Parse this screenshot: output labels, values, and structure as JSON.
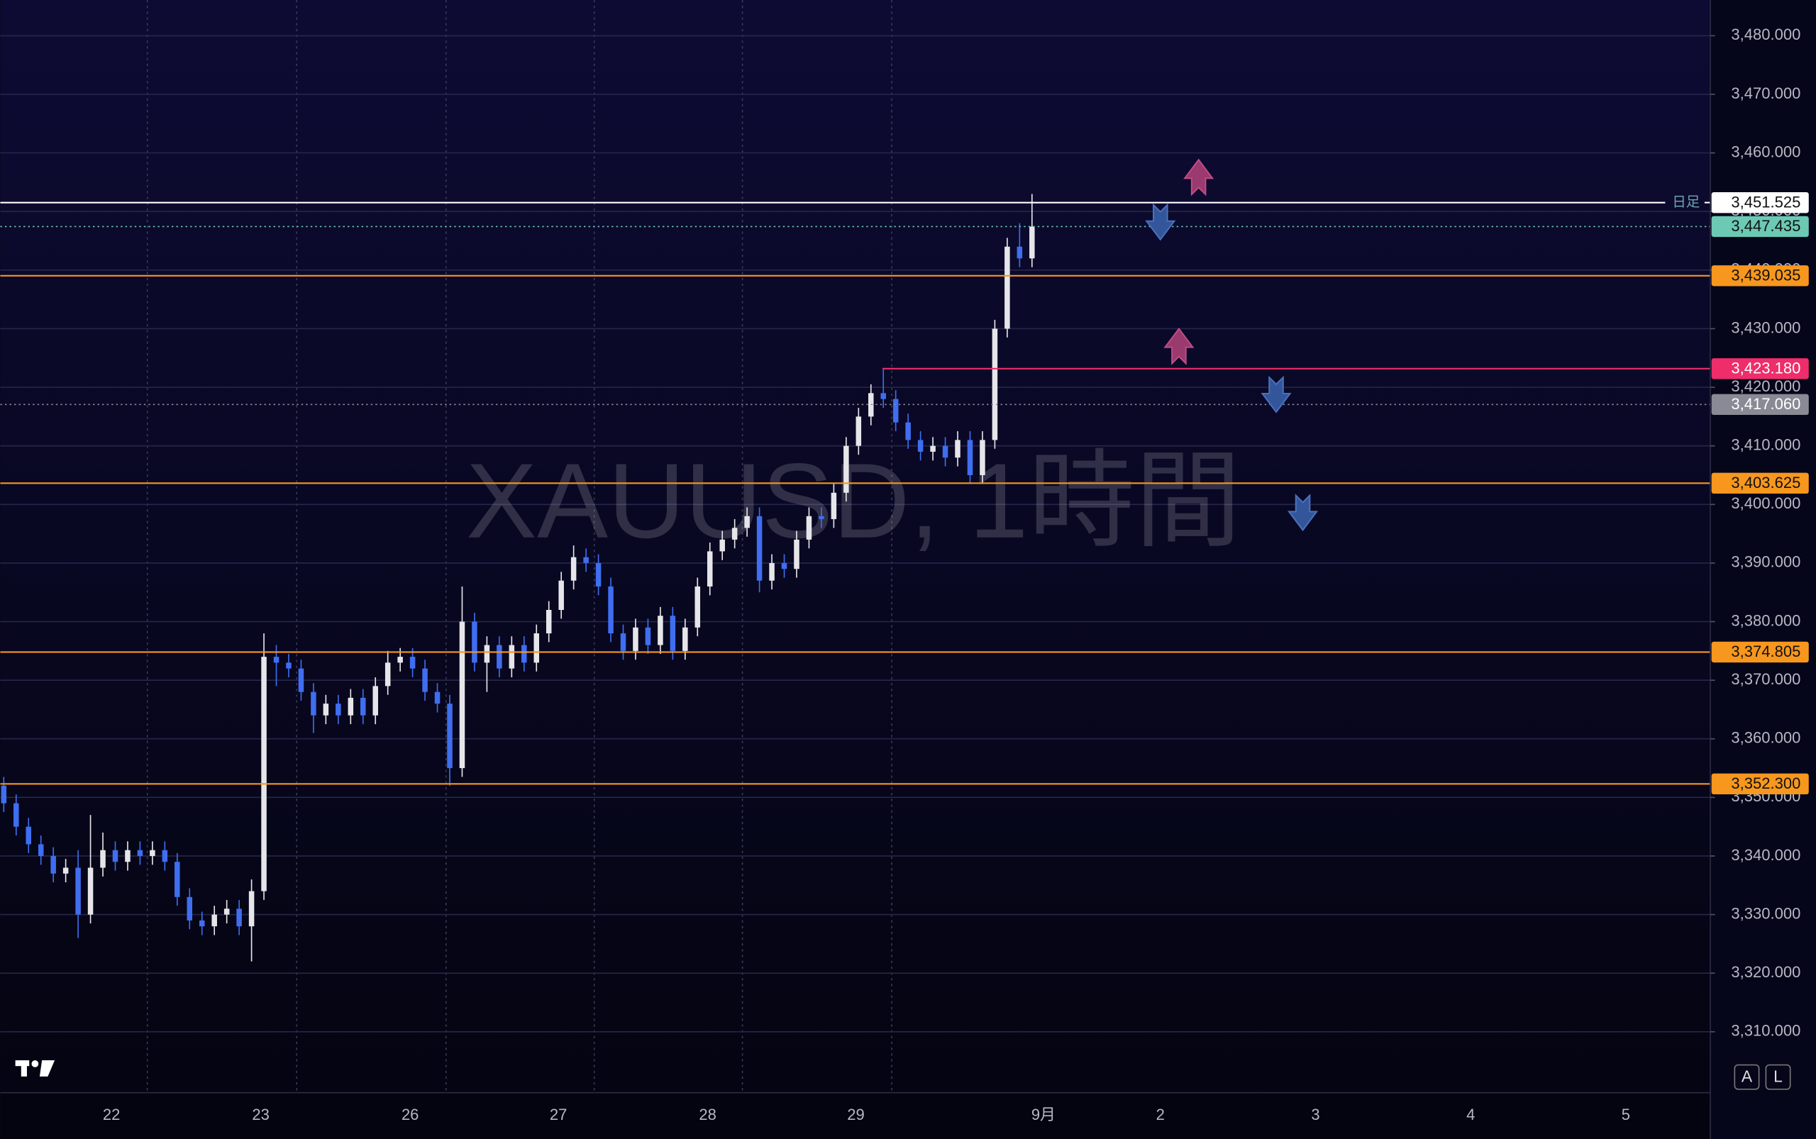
{
  "chart_data": {
    "type": "candlestick",
    "watermark": "XAUUSD, 1時間",
    "up_color": "#e6e6ea",
    "down_color": "#3f6ef0",
    "open": [
      3352,
      3349,
      3345,
      3342,
      3340,
      3337,
      3338,
      3330,
      3338,
      3341,
      3339,
      3341,
      3340,
      3341,
      3339,
      3333,
      3329,
      3328,
      3330,
      3331,
      3328,
      3334,
      3374,
      3373,
      3372,
      3368,
      3364,
      3366,
      3364,
      3367,
      3364,
      3369,
      3373,
      3374,
      3372,
      3368,
      3366,
      3355,
      3380,
      3373,
      3376,
      3372,
      3376,
      3373,
      3378,
      3382,
      3387,
      3391,
      3390,
      3386,
      3378,
      3375,
      3379,
      3376,
      3381,
      3375,
      3379,
      3386,
      3392,
      3394,
      3396,
      3398,
      3387,
      3390,
      3389,
      3394,
      3398,
      3397.5,
      3402,
      3410,
      3415,
      3419,
      3418,
      3414,
      3411,
      3409,
      3410,
      3408,
      3411,
      3405,
      3411,
      3430,
      3444,
      3442
    ],
    "high": [
      3353.5,
      3350.5,
      3346.5,
      3343.5,
      3341.5,
      3339.5,
      3341,
      3347,
      3344,
      3342.5,
      3342.5,
      3342.5,
      3342.5,
      3342.5,
      3340.5,
      3334.5,
      3330.5,
      3331.5,
      3332.5,
      3332.5,
      3336,
      3378,
      3376,
      3374.5,
      3373.5,
      3369.5,
      3367.5,
      3367.5,
      3368.5,
      3368.5,
      3370.5,
      3375,
      3375.5,
      3375.5,
      3373.5,
      3369.5,
      3367.5,
      3386,
      3381.5,
      3377.5,
      3377.5,
      3377.5,
      3377.5,
      3379.5,
      3383.5,
      3388.5,
      3393,
      3392.5,
      3391.5,
      3387.5,
      3379.5,
      3380.5,
      3380.5,
      3382.5,
      3382.5,
      3380.5,
      3387.5,
      3393.5,
      3395.5,
      3397.5,
      3399.5,
      3399.5,
      3391.5,
      3391.5,
      3395.5,
      3399.5,
      3399.5,
      3403.5,
      3411.5,
      3416.5,
      3420.5,
      3423.2,
      3419.5,
      3415.5,
      3412.5,
      3411.5,
      3411.5,
      3412.5,
      3412.5,
      3412.5,
      3431.5,
      3445.5,
      3448,
      3453
    ],
    "low": [
      3347.5,
      3343.5,
      3340.5,
      3338.5,
      3335.5,
      3335.5,
      3326,
      3328.5,
      3336.5,
      3337.5,
      3337.5,
      3338.5,
      3338.5,
      3337.5,
      3331.5,
      3327.5,
      3326.5,
      3326.5,
      3328.5,
      3326.5,
      3322,
      3332.5,
      3369,
      3370.5,
      3366.5,
      3361,
      3362.5,
      3362.5,
      3362.5,
      3362.5,
      3362.5,
      3367.5,
      3371.5,
      3370.5,
      3366.5,
      3364.5,
      3352,
      3353.5,
      3371.5,
      3368,
      3370.5,
      3370.5,
      3371.5,
      3371.5,
      3376.5,
      3380.5,
      3385.5,
      3388.5,
      3384.5,
      3376.5,
      3373.5,
      3373.5,
      3374.5,
      3374.5,
      3373.5,
      3373.5,
      3377.5,
      3384.5,
      3390.5,
      3392.5,
      3394.5,
      3385,
      3385.5,
      3387.5,
      3387.5,
      3392.5,
      3396,
      3396,
      3400.5,
      3408.5,
      3413.5,
      3416.5,
      3412.5,
      3409.5,
      3407.5,
      3407.5,
      3406.5,
      3406.5,
      3403.5,
      3403.5,
      3409.5,
      3428.5,
      3440.5,
      3440.5
    ],
    "close": [
      3349,
      3345,
      3342,
      3340,
      3337,
      3338,
      3330,
      3338,
      3341,
      3339,
      3341,
      3340,
      3341,
      3339,
      3333,
      3329,
      3328,
      3330,
      3331,
      3328,
      3334,
      3374,
      3373,
      3372,
      3368,
      3364,
      3366,
      3364,
      3367,
      3364,
      3369,
      3373,
      3374,
      3372,
      3368,
      3366,
      3355,
      3380,
      3373,
      3376,
      3372,
      3376,
      3373,
      3378,
      3382,
      3387,
      3391,
      3390,
      3386,
      3378,
      3375,
      3379,
      3376,
      3381,
      3375,
      3379,
      3386,
      3392,
      3394,
      3396,
      3398,
      3387,
      3390,
      3389,
      3394,
      3398,
      3397.5,
      3402,
      3410,
      3415,
      3419,
      3418,
      3414,
      3411,
      3409,
      3410,
      3408,
      3411,
      3405,
      3411,
      3430,
      3444,
      3442,
      3447.435
    ],
    "date_labels": [
      "22",
      "23",
      "26",
      "27",
      "28",
      "29",
      "9月",
      "2",
      "3",
      "4",
      "5"
    ],
    "ylim": [
      3299.6,
      3486.1
    ],
    "yticks": [
      {
        "value": 3310,
        "label": "3,310.000"
      },
      {
        "value": 3320,
        "label": "3,320.000"
      },
      {
        "value": 3330,
        "label": "3,330.000"
      },
      {
        "value": 3340,
        "label": "3,340.000"
      },
      {
        "value": 3350,
        "label": "3,350.000"
      },
      {
        "value": 3360,
        "label": "3,360.000"
      },
      {
        "value": 3370,
        "label": "3,370.000"
      },
      {
        "value": 3380,
        "label": "3,380.000"
      },
      {
        "value": 3390,
        "label": "3,390.000"
      },
      {
        "value": 3400,
        "label": "3,400.000"
      },
      {
        "value": 3410,
        "label": "3,410.000"
      },
      {
        "value": 3420,
        "label": "3,420.000"
      },
      {
        "value": 3430,
        "label": "3,430.000"
      },
      {
        "value": 3440,
        "label": "3,440.000"
      },
      {
        "value": 3450,
        "label": "3,450.000"
      },
      {
        "value": 3460,
        "label": "3,460.000"
      },
      {
        "value": 3470,
        "label": "3,470.000"
      },
      {
        "value": 3480,
        "label": "3,480.000"
      }
    ],
    "grid": true,
    "price_lines": [
      {
        "value": 3451.525,
        "label": "3,451.525",
        "color": "#ffffff",
        "style": "solid",
        "tag": "日足"
      },
      {
        "value": 3447.435,
        "label": "3,447.435",
        "color": "#6cc9b4",
        "style": "dotted"
      },
      {
        "value": 3439.035,
        "label": "3,439.035",
        "color": "#f7971e",
        "style": "solid"
      },
      {
        "value": 3423.18,
        "label": "3,423.180",
        "color": "#ee2d6a",
        "style": "solid"
      },
      {
        "value": 3417.06,
        "label": "3,417.060",
        "color": "#8a8a96",
        "style": "dotted"
      },
      {
        "value": 3403.625,
        "label": "3,403.625",
        "color": "#f7971e",
        "style": "solid"
      },
      {
        "value": 3374.805,
        "label": "3,374.805",
        "color": "#f7971e",
        "style": "solid"
      },
      {
        "value": 3352.3,
        "label": "3,352.300",
        "color": "#f7971e",
        "style": "solid"
      }
    ],
    "buttons": [
      "A",
      "L"
    ]
  }
}
